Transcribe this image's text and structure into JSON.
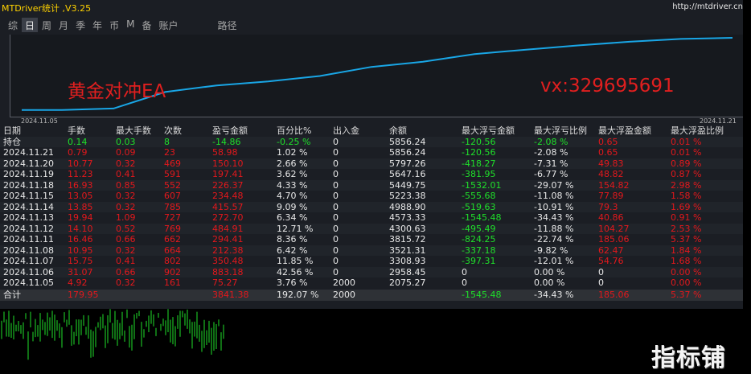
{
  "app": {
    "title": "MTDriver统计 ,V3.25",
    "site": "http://mtdriver.cn"
  },
  "tabs": [
    {
      "label": "综"
    },
    {
      "label": "日"
    },
    {
      "label": "周"
    },
    {
      "label": "月"
    },
    {
      "label": "季"
    },
    {
      "label": "年"
    },
    {
      "label": "币"
    },
    {
      "label": "M"
    },
    {
      "label": "备"
    },
    {
      "label": "账户"
    },
    {
      "label": "路径"
    }
  ],
  "active_tab": "日",
  "chart": {
    "x_start_label": "2024.11.05",
    "x_end_label": "2024.11.21",
    "line_color": "#19a6e6",
    "overlay_left": "黄金对冲EA",
    "overlay_right": "vx:329695691",
    "overlay_color": "#e01f1f"
  },
  "chart_data": {
    "type": "line",
    "x": [
      "2024.11.05",
      "2024.11.06",
      "2024.11.07",
      "2024.11.08",
      "2024.11.11",
      "2024.11.12",
      "2024.11.13",
      "2024.11.14",
      "2024.11.15",
      "2024.11.18",
      "2024.11.19",
      "2024.11.20",
      "2024.11.21"
    ],
    "series": [
      {
        "values": [
          2075.27,
          2958.45,
          3308.93,
          3521.31,
          3815.72,
          4300.63,
          4573.33,
          4988.9,
          5223.38,
          5449.75,
          5647.16,
          5797.26,
          5856.24
        ]
      }
    ],
    "xlabel": "",
    "ylabel": "",
    "grid": false
  },
  "table": {
    "headers": [
      "日期",
      "手数",
      "最大手数",
      "次数",
      "盈亏金额",
      "百分比%",
      "出入金",
      "余额",
      "最大浮亏金额",
      "最大浮亏比例",
      "最大浮盈金额",
      "最大浮盈比例"
    ],
    "position": {
      "label": "持仓",
      "cells": [
        "0.14",
        "0.03",
        "8",
        "-14.86",
        "-0.25 %",
        "0",
        "5856.24",
        "-120.56",
        "-2.08 %",
        "0.65",
        "0.01 %"
      ]
    },
    "rows": [
      {
        "date": "2024.11.21",
        "cells": [
          "0.79",
          "0.09",
          "23",
          "58.98",
          "1.02 %",
          "0",
          "5856.24",
          "-120.56",
          "-2.08 %",
          "0.65",
          "0.01 %"
        ]
      },
      {
        "date": "2024.11.20",
        "cells": [
          "10.77",
          "0.32",
          "469",
          "150.10",
          "2.66 %",
          "0",
          "5797.26",
          "-418.27",
          "-7.31 %",
          "49.83",
          "0.89 %"
        ]
      },
      {
        "date": "2024.11.19",
        "cells": [
          "11.23",
          "0.41",
          "591",
          "197.41",
          "3.62 %",
          "0",
          "5647.16",
          "-381.95",
          "-6.77 %",
          "48.82",
          "0.87 %"
        ]
      },
      {
        "date": "2024.11.18",
        "cells": [
          "16.93",
          "0.85",
          "552",
          "226.37",
          "4.33 %",
          "0",
          "5449.75",
          "-1532.01",
          "-29.07 %",
          "154.82",
          "2.98 %"
        ]
      },
      {
        "date": "2024.11.15",
        "cells": [
          "13.05",
          "0.32",
          "607",
          "234.48",
          "4.70 %",
          "0",
          "5223.38",
          "-555.68",
          "-11.08 %",
          "77.89",
          "1.58 %"
        ]
      },
      {
        "date": "2024.11.14",
        "cells": [
          "13.85",
          "0.32",
          "785",
          "415.57",
          "9.09 %",
          "0",
          "4988.90",
          "-519.63",
          "-10.91 %",
          "79.3",
          "1.69 %"
        ]
      },
      {
        "date": "2024.11.13",
        "cells": [
          "19.94",
          "1.09",
          "727",
          "272.70",
          "6.34 %",
          "0",
          "4573.33",
          "-1545.48",
          "-34.43 %",
          "40.86",
          "0.91 %"
        ]
      },
      {
        "date": "2024.11.12",
        "cells": [
          "14.10",
          "0.52",
          "769",
          "484.91",
          "12.71 %",
          "0",
          "4300.63",
          "-495.49",
          "-11.88 %",
          "104.27",
          "2.53 %"
        ]
      },
      {
        "date": "2024.11.11",
        "cells": [
          "16.46",
          "0.66",
          "662",
          "294.41",
          "8.36 %",
          "0",
          "3815.72",
          "-824.25",
          "-22.74 %",
          "185.06",
          "5.37 %"
        ]
      },
      {
        "date": "2024.11.08",
        "cells": [
          "10.95",
          "0.32",
          "664",
          "212.38",
          "6.42 %",
          "0",
          "3521.31",
          "-337.18",
          "-9.82 %",
          "62.47",
          "1.84 %"
        ]
      },
      {
        "date": "2024.11.07",
        "cells": [
          "15.75",
          "0.41",
          "802",
          "350.48",
          "11.85 %",
          "0",
          "3308.93",
          "-397.31",
          "-12.01 %",
          "54.76",
          "1.68 %"
        ]
      },
      {
        "date": "2024.11.06",
        "cells": [
          "31.07",
          "0.66",
          "902",
          "883.18",
          "42.56 %",
          "0",
          "2958.45",
          "0",
          "0.00 %",
          "0",
          "0.00 %"
        ]
      },
      {
        "date": "2024.11.05",
        "cells": [
          "4.92",
          "0.32",
          "161",
          "75.27",
          "3.76 %",
          "2000",
          "2075.27",
          "0",
          "0.00 %",
          "0",
          "0.00 %"
        ]
      }
    ],
    "total": {
      "label": "合计",
      "cells": [
        "179.95",
        "",
        "",
        "3841.38",
        "192.07 %",
        "2000",
        "",
        "-1545.48",
        "-34.43 %",
        "185.06",
        "5.37 %"
      ]
    }
  },
  "colors": {
    "positive": "#1fe02a",
    "negative": "#e4181c",
    "panel": "#1b1e24",
    "title": "#ffd200"
  },
  "watermark": "指标铺"
}
